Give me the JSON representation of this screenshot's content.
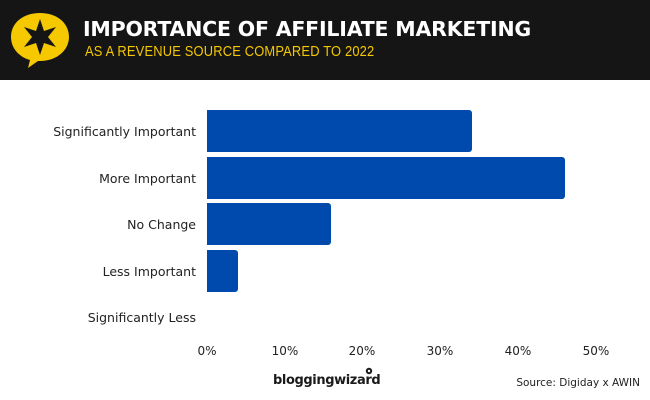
{
  "header": {
    "title": "IMPORTANCE OF AFFILIATE MARKETING",
    "subtitle": "AS A REVENUE SOURCE COMPARED TO 2022",
    "logo_icon": "star-speech-bubble-icon",
    "background_color": "#151515",
    "accent_color": "#f5c800"
  },
  "chart_data": {
    "type": "bar",
    "orientation": "horizontal",
    "title": "IMPORTANCE OF AFFILIATE MARKETING",
    "subtitle": "AS A REVENUE SOURCE COMPARED TO 2022",
    "categories": [
      "Significantly Important",
      "More Important",
      "No Change",
      "Less Important",
      "Significantly Less"
    ],
    "values": [
      34,
      46,
      16,
      4,
      0
    ],
    "unit": "%",
    "xlabel": "",
    "ylabel": "",
    "xlim": [
      0,
      50
    ],
    "x_ticks": [
      "0%",
      "10%",
      "20%",
      "30%",
      "40%",
      "50%"
    ],
    "grid": false,
    "legend": null,
    "bar_color": "#004aad"
  },
  "footer": {
    "brand": "bloggingwizard",
    "source": "Source: Digiday x AWIN"
  }
}
